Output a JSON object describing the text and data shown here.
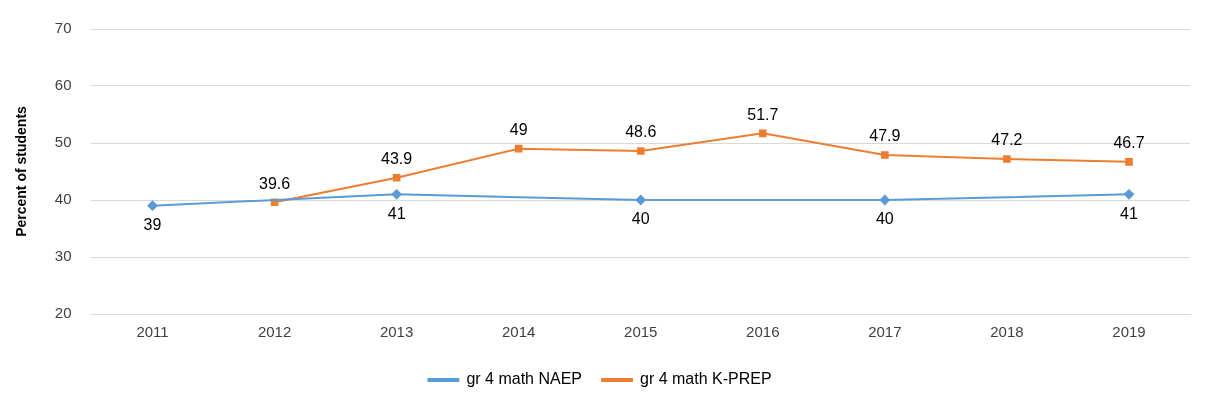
{
  "chart_data": {
    "type": "line",
    "ylabel": "Percent of students",
    "categories": [
      "2011",
      "2012",
      "2013",
      "2014",
      "2015",
      "2016",
      "2017",
      "2018",
      "2019"
    ],
    "series": [
      {
        "name": "gr 4 math NAEP",
        "color": "#5b9bd5",
        "marker": "diamond",
        "values": [
          39,
          null,
          41,
          null,
          40,
          null,
          40,
          null,
          41
        ]
      },
      {
        "name": "gr 4 math K-PREP",
        "color": "#ed7d31",
        "marker": "square",
        "values": [
          null,
          39.6,
          43.9,
          49,
          48.6,
          51.7,
          47.9,
          47.2,
          46.7
        ]
      }
    ],
    "ylim": [
      20,
      70
    ],
    "yticks": [
      20,
      30,
      40,
      50,
      60,
      70
    ],
    "grid": "y",
    "legend": "bottom",
    "data_labels": true
  }
}
